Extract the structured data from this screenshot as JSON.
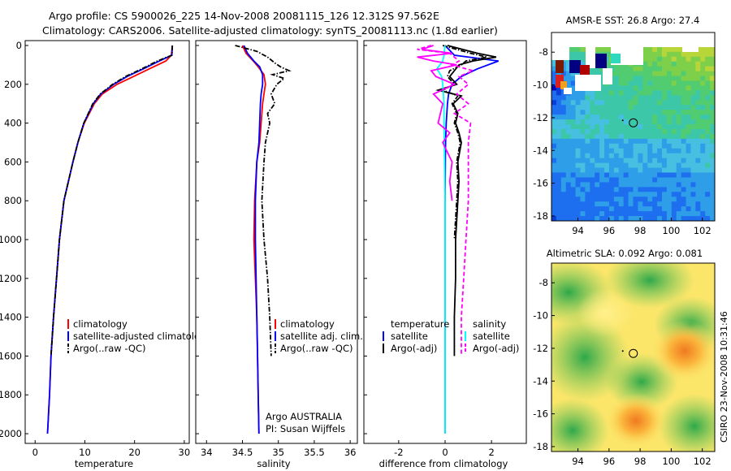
{
  "header": {
    "line1": "Argo profile: CS 5900026_225 14-Nov-2008 20081115_126 12.312S 97.562E",
    "line2": "Climatology: CARS2006. Satellite-adjusted climatology: synTS_20081113.nc (1.8d earlier)"
  },
  "stamp": "CSIRO 23-Nov-2008 10:31:46",
  "colors": {
    "climatology": "#ff0000",
    "satellite": "#0000ff",
    "argo": "#000000",
    "salinity_diff": "#ff00ff",
    "salinity_sat": "#00ffff"
  },
  "chart_data": [
    {
      "type": "line",
      "name": "temperature",
      "xlabel": "temperature",
      "ylabel": "",
      "xlim": [
        -2,
        31
      ],
      "ylim": [
        2050,
        0
      ],
      "xticks": [
        0,
        10,
        20,
        30
      ],
      "yticks": [
        0,
        200,
        400,
        600,
        800,
        1000,
        1200,
        1400,
        1600,
        1800,
        2000
      ],
      "series": [
        {
          "name": "climatology",
          "color": "#ff0000",
          "dash": "solid",
          "depth": [
            0,
            50,
            80,
            120,
            160,
            200,
            250,
            300,
            400,
            500,
            600,
            800,
            1000,
            1200,
            1400,
            1600,
            1800,
            2000
          ],
          "values": [
            27.6,
            27.4,
            26.3,
            23,
            19.8,
            16.5,
            13.5,
            11.9,
            9.9,
            8.6,
            7.6,
            5.8,
            4.9,
            4.3,
            3.7,
            3.2,
            2.9,
            2.5
          ]
        },
        {
          "name": "satellite-adjusted climatology",
          "color": "#0000ff",
          "dash": "solid",
          "depth": [
            0,
            50,
            80,
            120,
            160,
            200,
            250,
            300,
            400,
            500,
            600,
            800,
            1000,
            1200,
            1400,
            1600,
            1800,
            2000
          ],
          "values": [
            27.6,
            27.5,
            25,
            21.8,
            18.5,
            15.8,
            13.2,
            11.7,
            9.8,
            8.6,
            7.6,
            5.8,
            4.9,
            4.3,
            3.7,
            3.2,
            2.9,
            2.5
          ]
        },
        {
          "name": "Argo(..raw -QC)",
          "color": "#000000",
          "dash": "dashdot",
          "depth": [
            0,
            50,
            80,
            120,
            160,
            200,
            250,
            300,
            400,
            500,
            600,
            800,
            1000,
            1200,
            1400,
            1600
          ],
          "values": [
            27.6,
            27.5,
            24.6,
            21.5,
            18.2,
            15.6,
            13.1,
            11.6,
            9.8,
            8.6,
            7.6,
            5.8,
            4.9,
            4.3,
            3.7,
            3.2
          ]
        }
      ],
      "legend": [
        "climatology",
        "satellite-adjusted climatology",
        "Argo(..raw -QC)"
      ]
    },
    {
      "type": "line",
      "name": "salinity",
      "xlabel": "salinity",
      "xlim": [
        33.85,
        36.1
      ],
      "ylim": [
        2050,
        0
      ],
      "xticks": [
        34,
        34.5,
        35,
        35.5,
        36
      ],
      "series": [
        {
          "name": "climatology",
          "color": "#ff0000",
          "dash": "solid",
          "depth": [
            0,
            40,
            80,
            110,
            150,
            200,
            250,
            300,
            400,
            500,
            600,
            800,
            1000,
            1200,
            1400,
            1600,
            1800,
            2000
          ],
          "values": [
            34.5,
            34.55,
            34.65,
            34.72,
            34.8,
            34.82,
            34.8,
            34.78,
            34.76,
            34.74,
            34.7,
            34.67,
            34.66,
            34.68,
            34.7,
            34.71,
            34.72,
            34.73
          ]
        },
        {
          "name": "satellite adj. clim.",
          "color": "#0000ff",
          "dash": "solid",
          "depth": [
            0,
            40,
            80,
            110,
            150,
            200,
            250,
            300,
            400,
            500,
            600,
            800,
            1000,
            1200,
            1400,
            1600,
            1800,
            2000
          ],
          "values": [
            34.52,
            34.57,
            34.66,
            34.74,
            34.78,
            34.78,
            34.76,
            34.75,
            34.74,
            34.73,
            34.7,
            34.68,
            34.68,
            34.69,
            34.7,
            34.71,
            34.72,
            34.73
          ]
        },
        {
          "name": "Argo(..raw -QC)",
          "color": "#000000",
          "dash": "dashdot",
          "depth": [
            0,
            30,
            60,
            90,
            110,
            130,
            150,
            170,
            200,
            250,
            300,
            350,
            400,
            500,
            600,
            800,
            1000,
            1200,
            1400,
            1600
          ],
          "values": [
            34.4,
            34.7,
            34.85,
            34.95,
            35.03,
            35.15,
            34.92,
            35.08,
            34.98,
            34.9,
            34.95,
            34.85,
            34.88,
            34.82,
            34.8,
            34.77,
            34.8,
            34.85,
            34.88,
            34.9
          ]
        }
      ],
      "legend": [
        "climatology",
        "satellite adj. clim.",
        "Argo(..raw -QC)"
      ],
      "annotation": [
        "Argo AUSTRALIA",
        "PI: Susan Wijffels"
      ]
    },
    {
      "type": "line",
      "name": "difference",
      "xlabel": "difference from climatology",
      "xlim": [
        -3.5,
        3.5
      ],
      "ylim": [
        2050,
        0
      ],
      "xticks": [
        -2,
        0,
        2
      ],
      "series": [
        {
          "name": "temperature satellite",
          "color": "#0000ff",
          "dash": "solid",
          "depth": [
            0,
            50,
            80,
            120,
            160,
            200,
            250,
            300,
            400,
            500,
            600,
            800,
            1000,
            1500,
            2000
          ],
          "values": [
            0,
            0.4,
            2.3,
            1.4,
            0.7,
            0.3,
            0.15,
            0.1,
            0.05,
            0.02,
            0.01,
            0,
            0,
            0,
            0
          ]
        },
        {
          "name": "temperature Argo(-adj)",
          "color": "#000000",
          "dash": "solid",
          "depth": [
            0,
            40,
            60,
            80,
            100,
            130,
            160,
            200,
            230,
            260,
            300,
            350,
            400,
            450,
            500,
            600,
            700,
            800,
            1000,
            1200,
            1400,
            1600
          ],
          "values": [
            0.1,
            1.4,
            2.2,
            1.2,
            0.6,
            0.4,
            0.2,
            0.5,
            -0.3,
            0.7,
            0.35,
            0.55,
            0.45,
            0.6,
            0.7,
            0.55,
            0.6,
            0.55,
            0.45,
            0.45,
            0.4,
            0.4
          ]
        },
        {
          "name": "temperature Argo(raw)",
          "color": "#000000",
          "dash": "dashdot",
          "depth": [
            0,
            40,
            60,
            80,
            100,
            130,
            160,
            200,
            230,
            260,
            300,
            350,
            400,
            450,
            500,
            600,
            700,
            800,
            1000
          ],
          "values": [
            -0.1,
            1.1,
            1.8,
            0.9,
            0.7,
            0.2,
            0.1,
            0.4,
            -0.1,
            0.55,
            0.3,
            0.5,
            0.4,
            0.55,
            0.65,
            0.5,
            0.55,
            0.5,
            0.4
          ]
        },
        {
          "name": "salinity satellite",
          "color": "#00ffff",
          "dash": "solid",
          "depth": [
            0,
            50,
            80,
            120,
            160,
            200,
            300,
            400,
            600,
            800,
            1000,
            1500,
            2000
          ],
          "values": [
            0,
            -0.05,
            -0.1,
            -0.35,
            -0.15,
            -0.1,
            -0.05,
            -0.05,
            -0.02,
            0,
            0,
            0,
            0
          ]
        },
        {
          "name": "salinity Argo(-adj)",
          "color": "#ff00ff",
          "dash": "solid",
          "depth": [
            0,
            20,
            40,
            60,
            80,
            100,
            130,
            160,
            200,
            250,
            300,
            400,
            450,
            500,
            600,
            700,
            800
          ],
          "values": [
            -0.5,
            -1.0,
            0.3,
            -1.2,
            -0.5,
            0.5,
            -0.6,
            -0.4,
            0.4,
            -0.5,
            -0.1,
            -0.3,
            0.2,
            -0.1,
            0.3,
            0.2,
            0.3
          ]
        },
        {
          "name": "salinity Argo(raw)",
          "color": "#ff00ff",
          "dash": "dashed",
          "depth": [
            0,
            20,
            40,
            60,
            80,
            100,
            130,
            160,
            200,
            250,
            300,
            350,
            400,
            500,
            600,
            800,
            1000,
            1200,
            1400,
            1600
          ],
          "values": [
            -0.6,
            -1.2,
            0.2,
            0.4,
            0.6,
            0.3,
            1.2,
            0.6,
            1.0,
            0.5,
            1.0,
            0.4,
            1.1,
            1.0,
            1.0,
            1.0,
            0.9,
            0.8,
            0.7,
            0.7
          ]
        }
      ],
      "legend_left": [
        "temperature",
        "satellite",
        "Argo(-adj)"
      ],
      "legend_right": [
        "salinity",
        "satellite",
        "Argo(-adj)"
      ]
    },
    {
      "type": "heatmap",
      "name": "sst_map",
      "title": "AMSR-E SST: 26.8 Argo: 27.4",
      "xlim": [
        92.3,
        102.8
      ],
      "ylim": [
        -18.3,
        -6.8
      ],
      "xticks": [
        94,
        96,
        98,
        100,
        102
      ],
      "yticks": [
        -8,
        -10,
        -12,
        -14,
        -16,
        -18
      ],
      "argo_location": {
        "lon": 97.562,
        "lat": -12.312
      }
    },
    {
      "type": "heatmap",
      "name": "sla_map",
      "title": "Altimetric SLA: 0.092 Argo: 0.081",
      "xlim": [
        92.3,
        102.8
      ],
      "ylim": [
        -18.3,
        -6.8
      ],
      "xticks": [
        94,
        96,
        98,
        100,
        102
      ],
      "yticks": [
        -8,
        -10,
        -12,
        -14,
        -16,
        -18
      ],
      "argo_location": {
        "lon": 97.562,
        "lat": -12.312
      }
    }
  ]
}
